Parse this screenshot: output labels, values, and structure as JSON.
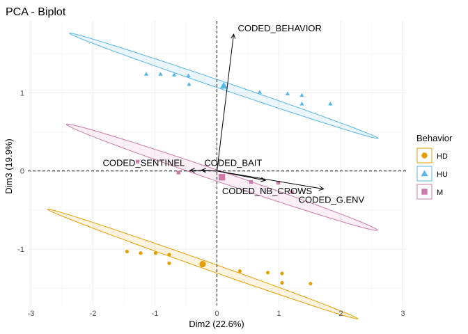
{
  "chart_data": {
    "type": "scatter",
    "title": "PCA - Biplot",
    "xlabel": "Dim2 (22.6%)",
    "ylabel": "Dim3 (19.9%)",
    "xlim": [
      -3.05,
      3.05
    ],
    "ylim": [
      -1.72,
      1.92
    ],
    "x_ticks": [
      -3,
      -2,
      -1,
      0,
      1,
      2,
      3
    ],
    "y_ticks": [
      -1,
      0,
      1
    ],
    "grid": true,
    "legend_position": "right",
    "legend_title": "Behavior",
    "series": [
      {
        "name": "HD",
        "color": "#E69F00",
        "shape": "circle",
        "points": [
          [
            -1.45,
            -1.03
          ],
          [
            -1.23,
            -1.05
          ],
          [
            -0.99,
            -1.05
          ],
          [
            -0.77,
            -1.07
          ],
          [
            -0.77,
            -1.18
          ],
          [
            0.37,
            -1.28
          ],
          [
            0.82,
            -1.3
          ],
          [
            1.05,
            -1.31
          ],
          [
            1.05,
            -1.43
          ],
          [
            1.51,
            -1.44
          ]
        ],
        "centroid": [
          -0.23,
          -1.19
        ],
        "ellipse": {
          "center": [
            -0.23,
            -1.19
          ],
          "semi_axes": [
            2.6,
            0.05
          ],
          "slope": -0.28
        }
      },
      {
        "name": "HU",
        "color": "#56B4E9",
        "shape": "triangle",
        "points": [
          [
            -1.14,
            1.24
          ],
          [
            -0.91,
            1.24
          ],
          [
            -0.69,
            1.23
          ],
          [
            -0.46,
            1.22
          ],
          [
            -0.45,
            1.11
          ],
          [
            0.69,
            1.01
          ],
          [
            1.14,
            0.99
          ],
          [
            1.37,
            0.97
          ],
          [
            1.37,
            0.86
          ],
          [
            1.83,
            0.86
          ]
        ],
        "centroid": [
          0.11,
          1.09
        ],
        "ellipse": {
          "center": [
            0.11,
            1.09
          ],
          "semi_axes": [
            2.58,
            0.05
          ],
          "slope": -0.27
        }
      },
      {
        "name": "M",
        "color": "#CC79A7",
        "shape": "square",
        "points": [
          [
            -1.28,
            0.12
          ],
          [
            -0.62,
            -0.02
          ],
          [
            0.55,
            -0.14
          ],
          [
            0.99,
            -0.15
          ],
          [
            1.21,
            -0.27
          ]
        ],
        "centroid": [
          0.08,
          -0.08
        ],
        "ellipse": {
          "center": [
            0.08,
            -0.08
          ],
          "semi_axes": [
            2.6,
            0.07
          ],
          "slope": -0.27
        }
      }
    ],
    "variables": [
      {
        "name": "CODED_BEHAVIOR",
        "end": [
          0.27,
          1.75
        ]
      },
      {
        "name": "CODED_SENTINEL",
        "end": [
          -0.43,
          0.01
        ]
      },
      {
        "name": "CODED_BAIT",
        "end": [
          -0.25,
          0.01
        ]
      },
      {
        "name": "CODED_NB_CROWS",
        "end": [
          0.78,
          -0.12
        ]
      },
      {
        "name": "CODED_G.ENV",
        "end": [
          1.72,
          -0.23
        ]
      }
    ]
  }
}
